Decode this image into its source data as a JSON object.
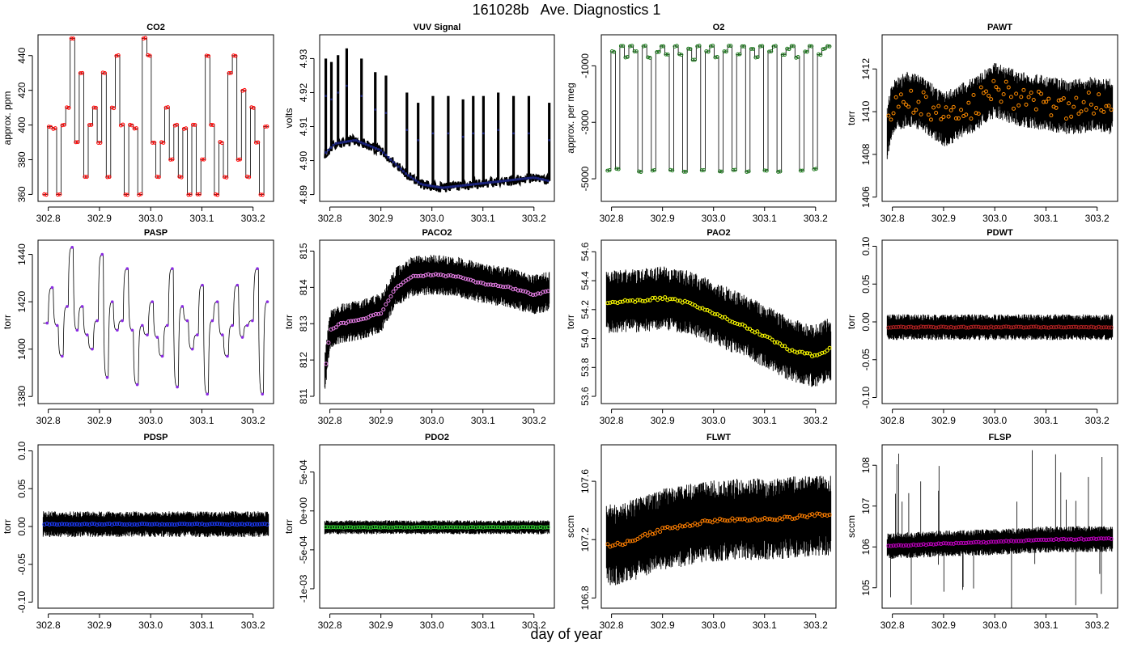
{
  "figure": {
    "title": "161028b   Ave. Diagnostics 1",
    "xlabel": "day of year"
  },
  "chart_data": [
    {
      "type": "line",
      "title": "CO2",
      "ylabel": "approx. ppm",
      "xlim": [
        302.78,
        303.24
      ],
      "ylim": [
        356,
        452
      ],
      "xticks": [
        302.8,
        302.9,
        303.0,
        303.1,
        303.2
      ],
      "xtick_labels": [
        "302.8",
        "302.9",
        "303.0",
        "303.1",
        "303.2"
      ],
      "yticks": [
        360,
        380,
        400,
        420,
        440
      ],
      "ytick_labels": [
        "360",
        "380",
        "400",
        "420",
        "440"
      ],
      "style": "steps",
      "marker_color": "#ff0000",
      "noise": 0.3,
      "levels": [
        360,
        399,
        398,
        360,
        400,
        410,
        450,
        390,
        430,
        370,
        400,
        410,
        390,
        430,
        370,
        410,
        440,
        400,
        360,
        400,
        398,
        360,
        450,
        440,
        390,
        370,
        390,
        410,
        380,
        400,
        370,
        398,
        360,
        400,
        360,
        380,
        440,
        400,
        360,
        390,
        370,
        430,
        440,
        380,
        420,
        370,
        410,
        390,
        360,
        399
      ]
    },
    {
      "type": "line",
      "title": "VUV Signal",
      "ylabel": "volts",
      "xlim": [
        302.78,
        303.24
      ],
      "ylim": [
        4.888,
        4.937
      ],
      "xticks": [
        302.8,
        302.9,
        303.0,
        303.1,
        303.2
      ],
      "xtick_labels": [
        "302.8",
        "302.9",
        "303.0",
        "303.1",
        "303.2"
      ],
      "yticks": [
        4.89,
        4.9,
        4.91,
        4.92,
        4.93
      ],
      "ytick_labels": [
        "4.89",
        "4.90",
        "4.91",
        "4.92",
        "4.93"
      ],
      "style": "spiky",
      "marker_color": "#1a237e",
      "baseline": [
        [
          302.79,
          4.902
        ],
        [
          302.81,
          4.905
        ],
        [
          302.85,
          4.906
        ],
        [
          302.9,
          4.903
        ],
        [
          302.95,
          4.896
        ],
        [
          302.98,
          4.893
        ],
        [
          303.02,
          4.892
        ],
        [
          303.08,
          4.893
        ],
        [
          303.14,
          4.894
        ],
        [
          303.2,
          4.895
        ],
        [
          303.23,
          4.894
        ]
      ],
      "spikes": [
        [
          302.792,
          4.93
        ],
        [
          302.803,
          4.929
        ],
        [
          302.816,
          4.931
        ],
        [
          302.833,
          4.933
        ],
        [
          302.862,
          4.93
        ],
        [
          302.889,
          4.926
        ],
        [
          302.91,
          4.925
        ],
        [
          302.951,
          4.92
        ],
        [
          302.973,
          4.917
        ],
        [
          303.002,
          4.919
        ],
        [
          303.032,
          4.919
        ],
        [
          303.061,
          4.918
        ],
        [
          303.081,
          4.919
        ],
        [
          303.101,
          4.919
        ],
        [
          303.13,
          4.92
        ],
        [
          303.16,
          4.919
        ],
        [
          303.19,
          4.919
        ],
        [
          303.23,
          4.917
        ]
      ]
    },
    {
      "type": "line",
      "title": "O2",
      "ylabel": "approx. per meg",
      "xlim": [
        302.78,
        303.24
      ],
      "ylim": [
        -5800,
        100
      ],
      "xticks": [
        302.8,
        302.9,
        303.0,
        303.1,
        303.2
      ],
      "xtick_labels": [
        "302.8",
        "302.9",
        "303.0",
        "303.1",
        "303.2"
      ],
      "yticks": [
        -5000,
        -3000,
        -1000
      ],
      "ytick_labels": [
        "-5000",
        "-3000",
        "-1000"
      ],
      "style": "steps",
      "marker_color": "#1b7a1b",
      "noise": 15,
      "levels": [
        -4700,
        -500,
        -4650,
        -300,
        -700,
        -300,
        -500,
        -4750,
        -300,
        -700,
        -4700,
        -500,
        -300,
        -600,
        -4700,
        -300,
        -600,
        -4750,
        -400,
        -800,
        -300,
        -4700,
        -500,
        -300,
        -700,
        -4750,
        -500,
        -300,
        -4700,
        -600,
        -300,
        -4750,
        -400,
        -700,
        -300,
        -4700,
        -500,
        -300,
        -4750,
        -600,
        -400,
        -300,
        -700,
        -4700,
        -500,
        -300,
        -4650,
        -600,
        -400,
        -300
      ]
    },
    {
      "type": "scatter",
      "title": "PAWT",
      "ylabel": "torr",
      "xlim": [
        302.78,
        303.24
      ],
      "ylim": [
        1405.8,
        1413.6
      ],
      "xticks": [
        302.8,
        302.9,
        303.0,
        303.1,
        303.2
      ],
      "xtick_labels": [
        "302.8",
        "302.9",
        "303.0",
        "303.1",
        "303.2"
      ],
      "yticks": [
        1406,
        1408,
        1410,
        1412
      ],
      "ytick_labels": [
        "1406",
        "1408",
        "1410",
        "1412"
      ],
      "style": "band",
      "marker_color": "#ff8c00",
      "band": 1.3,
      "trend": [
        [
          302.79,
          1409.0
        ],
        [
          302.8,
          1410.2
        ],
        [
          302.83,
          1410.6
        ],
        [
          302.86,
          1410.4
        ],
        [
          302.9,
          1409.6
        ],
        [
          302.95,
          1410.2
        ],
        [
          303.0,
          1411.0
        ],
        [
          303.05,
          1410.6
        ],
        [
          303.1,
          1410.4
        ],
        [
          303.15,
          1410.2
        ],
        [
          303.2,
          1410.4
        ],
        [
          303.23,
          1410.2
        ]
      ]
    },
    {
      "type": "line",
      "title": "PASP",
      "ylabel": "torr",
      "xlim": [
        302.78,
        303.24
      ],
      "ylim": [
        1377,
        1446
      ],
      "xticks": [
        302.8,
        302.9,
        303.0,
        303.1,
        303.2
      ],
      "xtick_labels": [
        "302.8",
        "302.9",
        "303.0",
        "303.1",
        "303.2"
      ],
      "yticks": [
        1380,
        1400,
        1420,
        1440
      ],
      "ytick_labels": [
        "1380",
        "1400",
        "1420",
        "1440"
      ],
      "style": "decay",
      "marker_color": "#8a2be2",
      "levels": [
        1411,
        1426,
        1410,
        1397,
        1418,
        1443,
        1408,
        1418,
        1406,
        1400,
        1412,
        1440,
        1388,
        1420,
        1408,
        1412,
        1434,
        1408,
        1385,
        1410,
        1406,
        1420,
        1405,
        1397,
        1410,
        1434,
        1384,
        1418,
        1412,
        1400,
        1406,
        1427,
        1381,
        1412,
        1420,
        1406,
        1397,
        1410,
        1427,
        1405,
        1410,
        1412,
        1434,
        1381,
        1420
      ]
    },
    {
      "type": "scatter",
      "title": "PACO2",
      "ylabel": "torr",
      "xlim": [
        302.78,
        303.24
      ],
      "ylim": [
        810.8,
        815.3
      ],
      "xticks": [
        302.8,
        302.9,
        303.0,
        303.1,
        303.2
      ],
      "xtick_labels": [
        "302.8",
        "302.9",
        "303.0",
        "303.1",
        "303.2"
      ],
      "yticks": [
        811,
        812,
        813,
        814,
        815
      ],
      "ytick_labels": [
        "811",
        "812",
        "813",
        "814",
        "815"
      ],
      "style": "band",
      "marker_color": "#ee82ee",
      "band": 0.55,
      "trend": [
        [
          302.79,
          811.6
        ],
        [
          302.8,
          812.8
        ],
        [
          302.82,
          813.0
        ],
        [
          302.86,
          813.1
        ],
        [
          302.9,
          813.3
        ],
        [
          302.93,
          814.0
        ],
        [
          302.96,
          814.3
        ],
        [
          303.0,
          814.35
        ],
        [
          303.05,
          814.3
        ],
        [
          303.1,
          814.1
        ],
        [
          303.15,
          814.0
        ],
        [
          303.2,
          813.8
        ],
        [
          303.23,
          813.9
        ]
      ]
    },
    {
      "type": "scatter",
      "title": "PAO2",
      "ylabel": "torr",
      "xlim": [
        302.78,
        303.24
      ],
      "ylim": [
        53.55,
        54.68
      ],
      "xticks": [
        302.8,
        302.9,
        303.0,
        303.1,
        303.2
      ],
      "xtick_labels": [
        "302.8",
        "302.9",
        "303.0",
        "303.1",
        "303.2"
      ],
      "yticks": [
        53.6,
        53.8,
        54.0,
        54.2,
        54.4,
        54.6
      ],
      "ytick_labels": [
        "53.6",
        "53.8",
        "54.0",
        "54.2",
        "54.4",
        "54.6"
      ],
      "style": "band",
      "marker_color": "#ffff00",
      "band": 0.22,
      "trend": [
        [
          302.79,
          54.25
        ],
        [
          302.85,
          54.26
        ],
        [
          302.9,
          54.28
        ],
        [
          302.95,
          54.25
        ],
        [
          303.0,
          54.18
        ],
        [
          303.05,
          54.1
        ],
        [
          303.1,
          54.02
        ],
        [
          303.15,
          53.92
        ],
        [
          303.2,
          53.88
        ],
        [
          303.23,
          53.93
        ]
      ]
    },
    {
      "type": "scatter",
      "title": "PDWT",
      "ylabel": "torr",
      "xlim": [
        302.78,
        303.24
      ],
      "ylim": [
        -0.108,
        0.108
      ],
      "xticks": [
        302.8,
        302.9,
        303.0,
        303.1,
        303.2
      ],
      "xtick_labels": [
        "302.8",
        "302.9",
        "303.0",
        "303.1",
        "303.2"
      ],
      "yticks": [
        -0.1,
        -0.05,
        0.0,
        0.05,
        0.1
      ],
      "ytick_labels": [
        "-0.10",
        "-0.05",
        "0.00",
        "0.05",
        "0.10"
      ],
      "style": "band",
      "marker_color": "#b22222",
      "band": 0.017,
      "trend": [
        [
          302.79,
          -0.007
        ],
        [
          303.23,
          -0.007
        ]
      ]
    },
    {
      "type": "scatter",
      "title": "PDSP",
      "ylabel": "torr",
      "xlim": [
        302.78,
        303.24
      ],
      "ylim": [
        -0.108,
        0.108
      ],
      "xticks": [
        302.8,
        302.9,
        303.0,
        303.1,
        303.2
      ],
      "xtick_labels": [
        "302.8",
        "302.9",
        "303.0",
        "303.1",
        "303.2"
      ],
      "yticks": [
        -0.1,
        -0.05,
        0.0,
        0.05,
        0.1
      ],
      "ytick_labels": [
        "-0.10",
        "-0.05",
        "0.00",
        "0.05",
        "0.10"
      ],
      "style": "band",
      "marker_color": "#1e3cff",
      "band": 0.017,
      "trend": [
        [
          302.79,
          0.003
        ],
        [
          303.23,
          0.003
        ]
      ]
    },
    {
      "type": "scatter",
      "title": "PDO2",
      "ylabel": "torr",
      "xlim": [
        302.78,
        303.24
      ],
      "ylim": [
        -0.00125,
        0.00085
      ],
      "xticks": [
        302.8,
        302.9,
        303.0,
        303.1,
        303.2
      ],
      "xtick_labels": [
        "302.8",
        "302.9",
        "303.0",
        "303.1",
        "303.2"
      ],
      "yticks": [
        -0.001,
        -0.0005,
        0,
        0.0005
      ],
      "ytick_labels": [
        "-1e-03",
        "-5e-04",
        "0e+00",
        "5e-04"
      ],
      "style": "band",
      "marker_color": "#32cd32",
      "band": 9e-05,
      "trend": [
        [
          302.79,
          -0.00021
        ],
        [
          303.23,
          -0.00021
        ]
      ]
    },
    {
      "type": "scatter",
      "title": "FLWT",
      "ylabel": "sccm",
      "xlim": [
        302.78,
        303.24
      ],
      "ylim": [
        106.73,
        107.85
      ],
      "xticks": [
        302.8,
        302.9,
        303.0,
        303.1,
        303.2
      ],
      "xtick_labels": [
        "302.8",
        "302.9",
        "303.0",
        "303.1",
        "303.2"
      ],
      "yticks": [
        106.8,
        107.2,
        107.6
      ],
      "ytick_labels": [
        "106.8",
        "107.2",
        "107.6"
      ],
      "style": "band",
      "marker_color": "#ff7f00",
      "band": 0.28,
      "trend": [
        [
          302.79,
          107.16
        ],
        [
          302.82,
          107.17
        ],
        [
          302.86,
          107.22
        ],
        [
          302.9,
          107.27
        ],
        [
          302.95,
          107.3
        ],
        [
          303.0,
          107.33
        ],
        [
          303.05,
          107.34
        ],
        [
          303.1,
          107.34
        ],
        [
          303.15,
          107.35
        ],
        [
          303.2,
          107.37
        ],
        [
          303.23,
          107.37
        ]
      ]
    },
    {
      "type": "scatter",
      "title": "FLSP",
      "ylabel": "sccm",
      "xlim": [
        302.78,
        303.24
      ],
      "ylim": [
        104.5,
        108.5
      ],
      "xticks": [
        302.8,
        302.9,
        303.0,
        303.1,
        303.2
      ],
      "xtick_labels": [
        "302.8",
        "302.9",
        "303.0",
        "303.1",
        "303.2"
      ],
      "yticks": [
        105,
        106,
        107,
        108
      ],
      "ytick_labels": [
        "105",
        "106",
        "107",
        "108"
      ],
      "style": "band",
      "marker_color": "#c000c0",
      "band": 0.32,
      "trend": [
        [
          302.79,
          106.02
        ],
        [
          302.9,
          106.08
        ],
        [
          303.0,
          106.12
        ],
        [
          303.1,
          106.18
        ],
        [
          303.23,
          106.2
        ]
      ]
    }
  ]
}
